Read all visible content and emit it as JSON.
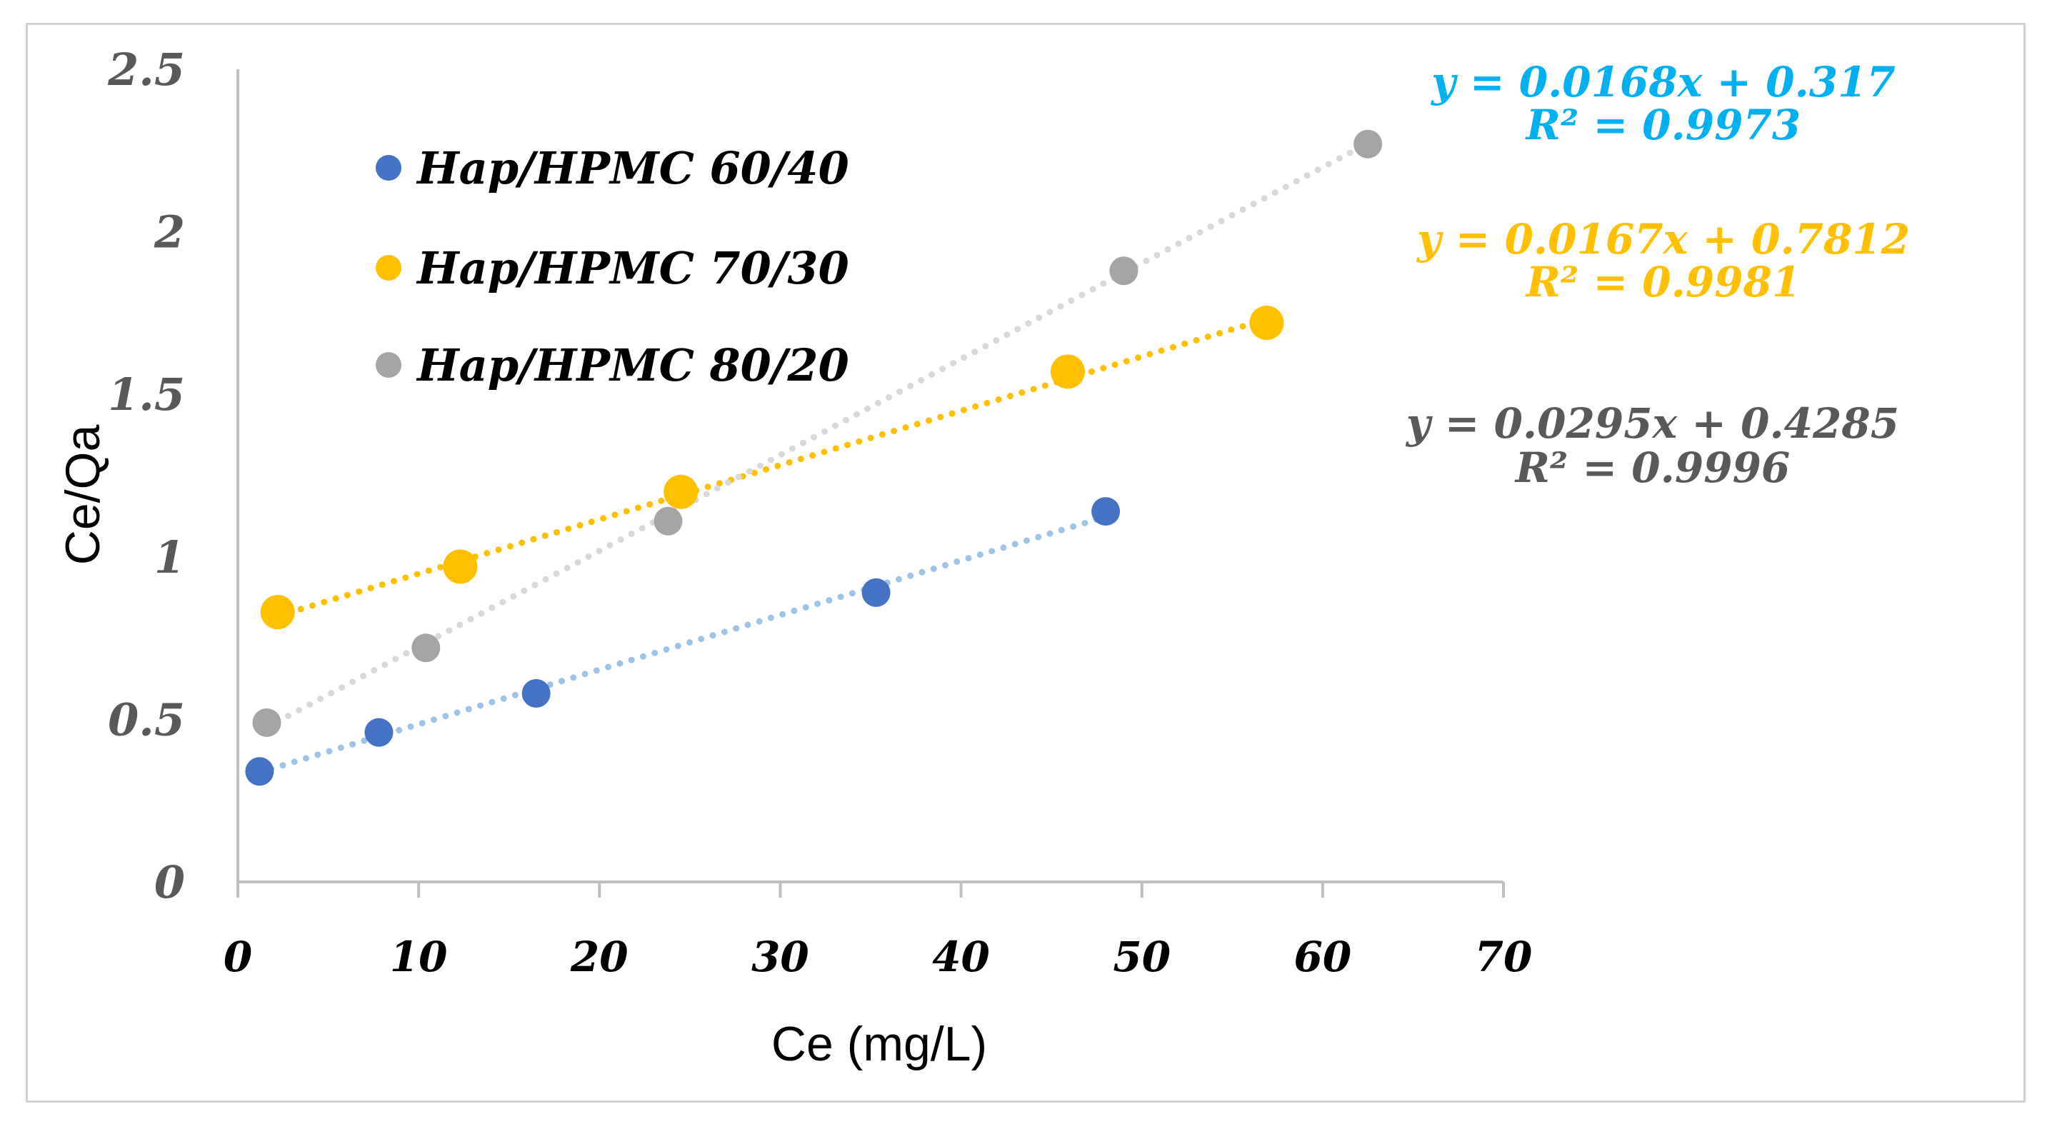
{
  "chart_data": {
    "type": "scatter",
    "title": "",
    "xlabel": "Ce (mg/L)",
    "ylabel": "Ce/Qa",
    "xlim": [
      0,
      70
    ],
    "ylim": [
      0,
      2.5
    ],
    "x_ticks": [
      "0",
      "10",
      "20",
      "30",
      "40",
      "50",
      "60",
      "70"
    ],
    "y_ticks": [
      "0",
      "0.5",
      "1",
      "1.5",
      "2",
      "2.5"
    ],
    "legend_position": "top-left",
    "series": [
      {
        "name": "Hap/HPMC 60/40",
        "color": "#4472C4",
        "trend_color": "#9DC3E6",
        "points": [
          [
            1.2,
            0.34
          ],
          [
            7.8,
            0.46
          ],
          [
            16.5,
            0.58
          ],
          [
            35.3,
            0.89
          ],
          [
            48.0,
            1.14
          ]
        ],
        "trendline": {
          "slope": 0.0168,
          "intercept": 0.317,
          "x_range": [
            1.2,
            48.0
          ]
        },
        "equation": "y = 0.0168x + 0.317",
        "r2": "R² = 0.9973",
        "label_color": "#00B0F0"
      },
      {
        "name": "Hap/HPMC 70/30",
        "color": "#FFC000",
        "trend_color": "#FFC000",
        "points": [
          [
            2.2,
            0.83
          ],
          [
            12.3,
            0.97
          ],
          [
            24.5,
            1.2
          ],
          [
            45.9,
            1.57
          ],
          [
            56.9,
            1.72
          ]
        ],
        "trendline": {
          "slope": 0.0167,
          "intercept": 0.7812,
          "x_range": [
            2.2,
            56.9
          ]
        },
        "equation": "y = 0.0167x + 0.7812",
        "r2": "R² = 0.9981",
        "label_color": "#FFC000"
      },
      {
        "name": "Hap/HPMC 80/20",
        "color": "#A5A5A5",
        "trend_color": "#D9D9D9",
        "points": [
          [
            1.6,
            0.49
          ],
          [
            10.4,
            0.72
          ],
          [
            23.8,
            1.11
          ],
          [
            49.0,
            1.88
          ],
          [
            62.5,
            2.27
          ]
        ],
        "trendline": {
          "slope": 0.0295,
          "intercept": 0.4285,
          "x_range": [
            1.6,
            62.5
          ]
        },
        "equation": "y = 0.0295x + 0.4285",
        "r2": "R² = 0.9996",
        "label_color": "#595959"
      }
    ]
  }
}
